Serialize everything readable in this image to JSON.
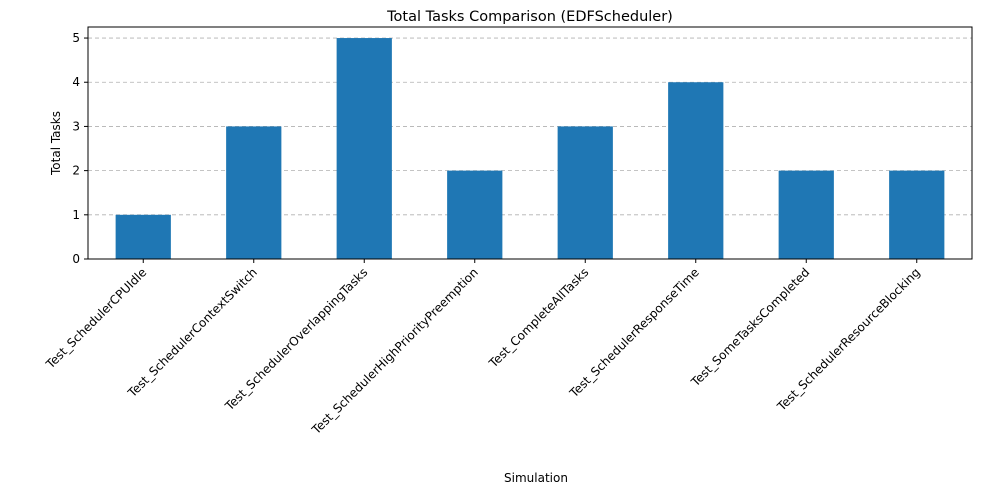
{
  "chart_data": {
    "type": "bar",
    "title": "Total Tasks Comparison (EDFScheduler)",
    "xlabel": "Simulation",
    "ylabel": "Total Tasks",
    "categories": [
      "Test_SchedulerCPUIdle",
      "Test_SchedulerContextSwitch",
      "Test_SchedulerOverlappingTasks",
      "Test_SchedulerHighPriorityPreemption",
      "Test_CompleteAllTasks",
      "Test_SchedulerResponseTime",
      "Test_SomeTasksCompleted",
      "Test_SchedulerResourceBlocking"
    ],
    "values": [
      1,
      3,
      5,
      2,
      3,
      4,
      2,
      2
    ],
    "ylim": [
      0,
      5.25
    ],
    "yticks": [
      0,
      1,
      2,
      3,
      4,
      5
    ],
    "grid": "y-dashed",
    "bar_color": "#1f77b4"
  }
}
